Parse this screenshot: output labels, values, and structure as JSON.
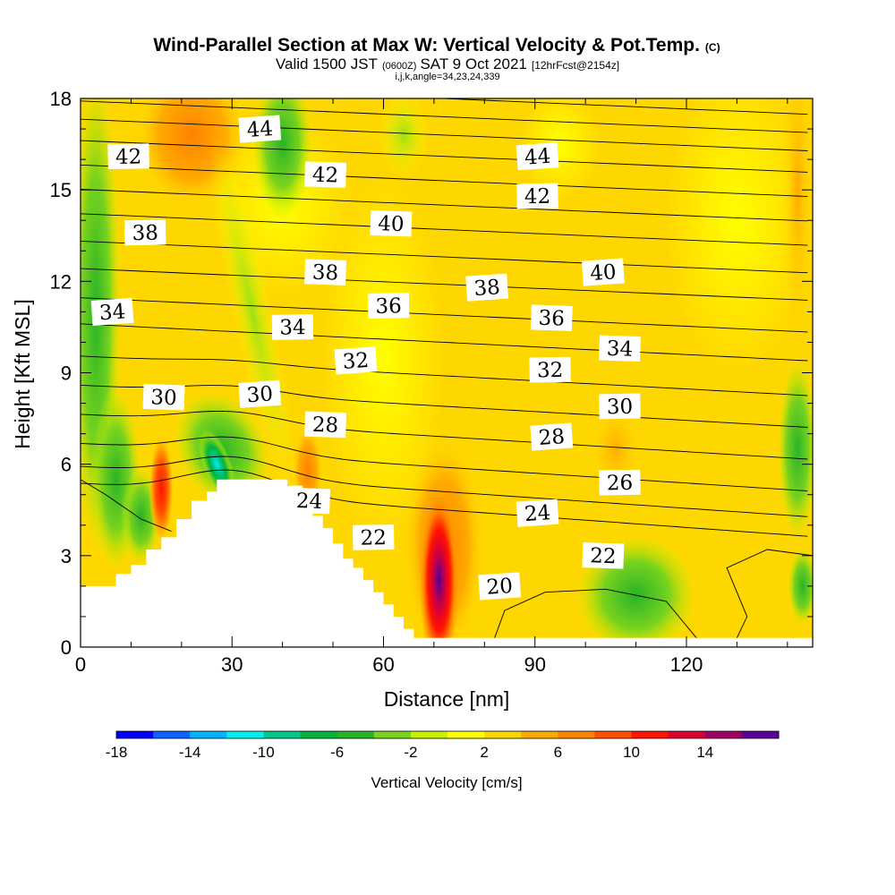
{
  "chart_data": {
    "type": "heatmap",
    "title": "Wind-Parallel Section at Max W: Vertical Velocity & Pot.Temp.",
    "title_units": "(C)",
    "subtitle_valid": "Valid 1500 JST",
    "subtitle_utc": "(0600Z)",
    "subtitle_date": "SAT 9 Oct 2021",
    "subtitle_fcst": "[12hrFcst@2154z]",
    "subtitle_indices": "i,j,k,angle=34,23,24,339",
    "xlabel": "Distance [nm]",
    "ylabel": "Height [Kft MSL]",
    "xlim": [
      0,
      145
    ],
    "ylim": [
      0,
      18
    ],
    "x_ticks": [
      0,
      30,
      60,
      90,
      120
    ],
    "y_ticks": [
      0,
      3,
      6,
      9,
      12,
      15,
      18
    ],
    "colorbar": {
      "label": "Vertical Velocity [cm/s]",
      "ticks": [
        "-18",
        "-14",
        "-10",
        "-6",
        "-2",
        "2",
        "6",
        "10",
        "14"
      ],
      "colors": [
        "#0000ff",
        "#0a64ff",
        "#00b4ff",
        "#00f0f0",
        "#00c88c",
        "#00b43c",
        "#28b428",
        "#78d21e",
        "#c8f000",
        "#ffff00",
        "#ffd700",
        "#ffaa00",
        "#ff8200",
        "#ff5000",
        "#ff1400",
        "#dc0032",
        "#a00064",
        "#5a0096"
      ]
    },
    "terrain_kft": [
      [
        0,
        2.0
      ],
      [
        4,
        2.0
      ],
      [
        7,
        2.4
      ],
      [
        10,
        2.7
      ],
      [
        13,
        3.2
      ],
      [
        16,
        3.6
      ],
      [
        19,
        4.2
      ],
      [
        22,
        4.8
      ],
      [
        25,
        5.1
      ],
      [
        27,
        5.5
      ],
      [
        29,
        5.5
      ],
      [
        38,
        5.5
      ],
      [
        41,
        5.3
      ],
      [
        44,
        4.8
      ],
      [
        46,
        4.3
      ],
      [
        48,
        3.9
      ],
      [
        50,
        3.4
      ],
      [
        52,
        2.9
      ],
      [
        54,
        2.6
      ],
      [
        56,
        2.2
      ],
      [
        58,
        1.8
      ],
      [
        60,
        1.4
      ],
      [
        62,
        1.0
      ],
      [
        64,
        0.6
      ],
      [
        66,
        0.3
      ],
      [
        145,
        0.3
      ]
    ],
    "theta_contour_labels": [
      {
        "text": "44",
        "x": 35.5,
        "y": 17.0
      },
      {
        "text": "42",
        "x": 9.5,
        "y": 16.1
      },
      {
        "text": "42",
        "x": 48.5,
        "y": 15.5
      },
      {
        "text": "44",
        "x": 90.5,
        "y": 16.1
      },
      {
        "text": "42",
        "x": 90.5,
        "y": 14.8
      },
      {
        "text": "40",
        "x": 61.5,
        "y": 13.9
      },
      {
        "text": "40",
        "x": 103.5,
        "y": 12.3
      },
      {
        "text": "38",
        "x": 12.8,
        "y": 13.6
      },
      {
        "text": "38",
        "x": 48.5,
        "y": 12.3
      },
      {
        "text": "38",
        "x": 80.5,
        "y": 11.8
      },
      {
        "text": "36",
        "x": 61.0,
        "y": 11.2
      },
      {
        "text": "36",
        "x": 93.3,
        "y": 10.8
      },
      {
        "text": "34",
        "x": 6.3,
        "y": 11.0
      },
      {
        "text": "34",
        "x": 42.0,
        "y": 10.5
      },
      {
        "text": "34",
        "x": 106.8,
        "y": 9.8
      },
      {
        "text": "32",
        "x": 54.5,
        "y": 9.4
      },
      {
        "text": "32",
        "x": 93.0,
        "y": 9.1
      },
      {
        "text": "30",
        "x": 16.5,
        "y": 8.2
      },
      {
        "text": "30",
        "x": 35.5,
        "y": 8.3
      },
      {
        "text": "30",
        "x": 106.8,
        "y": 7.9
      },
      {
        "text": "28",
        "x": 48.5,
        "y": 7.3
      },
      {
        "text": "28",
        "x": 93.3,
        "y": 6.9
      },
      {
        "text": "26",
        "x": 106.8,
        "y": 5.4
      },
      {
        "text": "24",
        "x": 45.3,
        "y": 4.8
      },
      {
        "text": "24",
        "x": 90.5,
        "y": 4.4
      },
      {
        "text": "22",
        "x": 58.0,
        "y": 3.6
      },
      {
        "text": "22",
        "x": 103.5,
        "y": 3.0
      },
      {
        "text": "20",
        "x": 83.0,
        "y": 2.0
      }
    ],
    "w_features": [
      {
        "kind": "updraft",
        "x": 71,
        "y": 2.0,
        "peak_cm_s": 16
      },
      {
        "kind": "updraft",
        "x": 16,
        "y": 5.2,
        "peak_cm_s": 10
      },
      {
        "kind": "updraft",
        "x": 45,
        "y": 5.8,
        "peak_cm_s": 7
      },
      {
        "kind": "updraft",
        "x": 22,
        "y": 17.0,
        "peak_cm_s": 6
      },
      {
        "kind": "downdraft",
        "x": 110,
        "y": 1.8,
        "peak_cm_s": -7
      },
      {
        "kind": "downdraft",
        "x": 27,
        "y": 5.9,
        "peak_cm_s": -12
      },
      {
        "kind": "downdraft",
        "x": 12,
        "y": 4.0,
        "peak_cm_s": -7
      },
      {
        "kind": "downdraft",
        "x": 3,
        "y": 10.5,
        "peak_cm_s": -5
      },
      {
        "kind": "downdraft",
        "x": 40,
        "y": 16.5,
        "peak_cm_s": -6
      },
      {
        "kind": "downdraft",
        "x": 64,
        "y": 16.8,
        "peak_cm_s": -3
      },
      {
        "kind": "downdraft",
        "x": 142,
        "y": 6.5,
        "peak_cm_s": -5
      }
    ]
  }
}
